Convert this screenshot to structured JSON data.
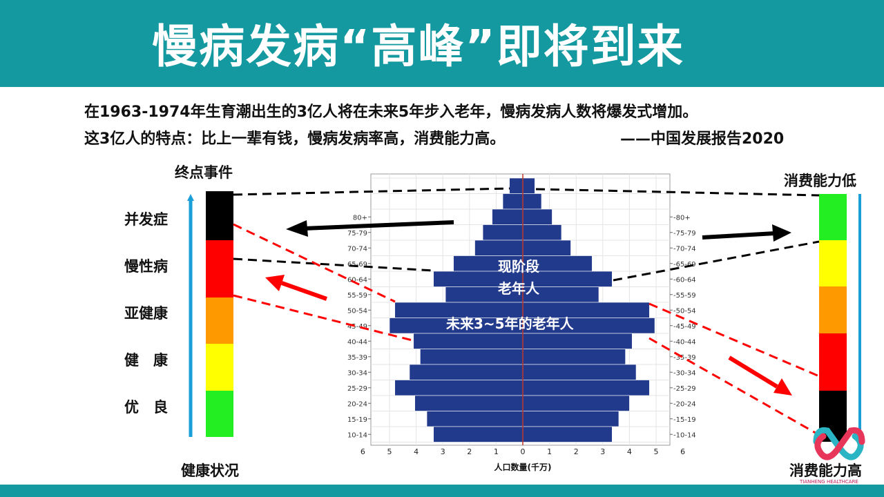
{
  "header": {
    "title": "慢病发病“高峰”即将到来"
  },
  "intro": {
    "line1": "在1963-1974年生育潮出生的3亿人将在未来5年步入老年，慢病发病人数将爆发式增加。",
    "line2": "这3亿人的特点：比上一辈有钱，慢病发病率高，消费能力高。",
    "source": "——中国发展报告2020"
  },
  "health_scale": {
    "top_label": "终点事件",
    "bottom_label": "健康状况",
    "levels": [
      "并发症",
      "慢性病",
      "亚健康",
      "健　康",
      "优　良"
    ],
    "colors": [
      "#000000",
      "#ff0000",
      "#ff9900",
      "#ffff00",
      "#22ee22"
    ]
  },
  "consumption_scale": {
    "top_label": "消费能力低",
    "bottom_label": "消费能力高",
    "colors": [
      "#22ee22",
      "#ffff00",
      "#ff9900",
      "#ff0000",
      "#000000"
    ]
  },
  "annotations": {
    "current_elderly": [
      "现阶段",
      "老年人"
    ],
    "future_elderly": "未来3~5年的老年人"
  },
  "logo": {
    "text": "TIANHENG HEALTHCARE"
  },
  "chart_data": {
    "type": "bar",
    "orientation": "horizontal-population-pyramid",
    "xlabel": "人口数量(千万)",
    "x_ticks": [
      6,
      5,
      4,
      3,
      2,
      1,
      0,
      1,
      2,
      3,
      4,
      5,
      6
    ],
    "xlim": [
      -6,
      6
    ],
    "categories": [
      "",
      "",
      "80+",
      "75-79",
      "70-74",
      "65-69",
      "60-64",
      "55-59",
      "50-54",
      "45-49",
      "40-44",
      "35-39",
      "30-34",
      "25-29",
      "20-24",
      "15-19",
      "10-14"
    ],
    "series": [
      {
        "side": "left",
        "values": [
          0.5,
          0.75,
          1.15,
          1.5,
          1.8,
          2.6,
          3.35,
          2.9,
          4.8,
          5.0,
          4.1,
          3.85,
          4.25,
          4.8,
          4.05,
          3.6,
          3.35
        ]
      },
      {
        "side": "right",
        "values": [
          0.45,
          0.7,
          1.1,
          1.45,
          1.8,
          2.6,
          3.35,
          2.85,
          4.75,
          4.95,
          4.1,
          3.85,
          4.25,
          4.75,
          4.0,
          3.6,
          3.35
        ]
      }
    ],
    "bar_color": "#223a8c",
    "grid": true
  }
}
